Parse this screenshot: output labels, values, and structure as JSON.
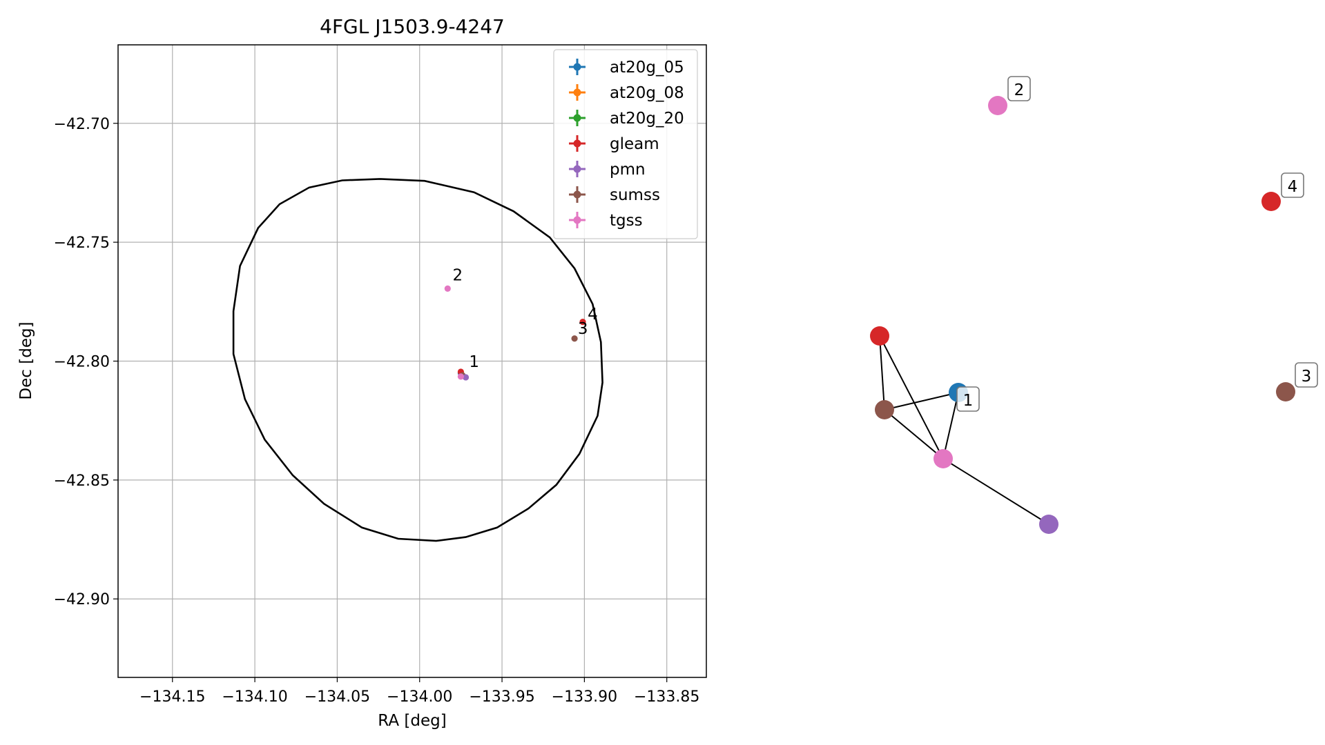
{
  "chart_data": [
    {
      "type": "scatter",
      "title": "4FGL J1503.9-4247",
      "xlabel": "RA [deg]",
      "ylabel": "Dec [deg]",
      "xlim": [
        -134.183,
        -133.826
      ],
      "ylim": [
        -42.933,
        -42.667
      ],
      "xticks": [
        -134.15,
        -134.1,
        -134.05,
        -134.0,
        -133.95,
        -133.9,
        -133.85
      ],
      "xtick_labels": [
        "−134.15",
        "−134.10",
        "−134.05",
        "−134.00",
        "−133.95",
        "−133.90",
        "−133.85"
      ],
      "yticks": [
        -42.7,
        -42.75,
        -42.8,
        -42.85,
        -42.9
      ],
      "ytick_labels": [
        "−42.70",
        "−42.75",
        "−42.80",
        "−42.85",
        "−42.90"
      ],
      "grid": true,
      "legend_position": "top-right",
      "legend": [
        {
          "name": "at20g_05",
          "color": "#1f77b4"
        },
        {
          "name": "at20g_08",
          "color": "#ff7f0e"
        },
        {
          "name": "at20g_20",
          "color": "#2ca02c"
        },
        {
          "name": "gleam",
          "color": "#d62728"
        },
        {
          "name": "pmn",
          "color": "#9467bd"
        },
        {
          "name": "sumss",
          "color": "#8c564b"
        },
        {
          "name": "tgss",
          "color": "#e377c2"
        }
      ],
      "ellipse": {
        "color": "#000000",
        "points": [
          [
            -134.024,
            -42.7234
          ],
          [
            -133.997,
            -42.7242
          ],
          [
            -133.967,
            -42.729
          ],
          [
            -133.943,
            -42.737
          ],
          [
            -133.921,
            -42.748
          ],
          [
            -133.906,
            -42.761
          ],
          [
            -133.895,
            -42.776
          ],
          [
            -133.89,
            -42.792
          ],
          [
            -133.889,
            -42.809
          ],
          [
            -133.892,
            -42.823
          ],
          [
            -133.903,
            -42.839
          ],
          [
            -133.917,
            -42.852
          ],
          [
            -133.934,
            -42.862
          ],
          [
            -133.953,
            -42.87
          ],
          [
            -133.972,
            -42.874
          ],
          [
            -133.99,
            -42.8756
          ],
          [
            -134.013,
            -42.8747
          ],
          [
            -134.035,
            -42.87
          ],
          [
            -134.058,
            -42.86
          ],
          [
            -134.077,
            -42.848
          ],
          [
            -134.094,
            -42.833
          ],
          [
            -134.106,
            -42.816
          ],
          [
            -134.113,
            -42.797
          ],
          [
            -134.113,
            -42.779
          ],
          [
            -134.109,
            -42.76
          ],
          [
            -134.098,
            -42.744
          ],
          [
            -134.085,
            -42.734
          ],
          [
            -134.067,
            -42.727
          ],
          [
            -134.047,
            -42.724
          ],
          [
            -134.024,
            -42.7234
          ]
        ]
      },
      "points": [
        {
          "catalog": "at20g_05",
          "ra": -133.975,
          "dec": -42.805,
          "color": "#1f77b4"
        },
        {
          "catalog": "gleam",
          "ra": -133.975,
          "dec": -42.8045,
          "color": "#d62728"
        },
        {
          "catalog": "sumss",
          "ra": -133.974,
          "dec": -42.806,
          "color": "#8c564b"
        },
        {
          "catalog": "pmn",
          "ra": -133.972,
          "dec": -42.8068,
          "color": "#9467bd"
        },
        {
          "catalog": "tgss",
          "ra": -133.975,
          "dec": -42.8065,
          "color": "#e377c2"
        },
        {
          "catalog": "tgss",
          "ra": -133.983,
          "dec": -42.7695,
          "color": "#e377c2"
        },
        {
          "catalog": "sumss",
          "ra": -133.906,
          "dec": -42.7905,
          "color": "#8c564b"
        },
        {
          "catalog": "gleam",
          "ra": -133.901,
          "dec": -42.7835,
          "color": "#d62728"
        }
      ],
      "point_labels": [
        {
          "text": "1",
          "ra": -133.97,
          "dec": -42.8025
        },
        {
          "text": "2",
          "ra": -133.98,
          "dec": -42.766
        },
        {
          "text": "3",
          "ra": -133.904,
          "dec": -42.7885
        },
        {
          "text": "4",
          "ra": -133.898,
          "dec": -42.7825
        }
      ]
    },
    {
      "type": "network",
      "nodes": [
        {
          "id": "gleam",
          "color": "#d62728"
        },
        {
          "id": "at20g_05",
          "color": "#1f77b4"
        },
        {
          "id": "sumss",
          "color": "#8c564b"
        },
        {
          "id": "tgss",
          "color": "#e377c2"
        },
        {
          "id": "pmn",
          "color": "#9467bd"
        },
        {
          "id": "tgss_2",
          "color": "#e377c2"
        },
        {
          "id": "gleam_4",
          "color": "#d62728"
        },
        {
          "id": "sumss_3",
          "color": "#8c564b"
        }
      ],
      "edges": [
        [
          "gleam",
          "sumss"
        ],
        [
          "gleam",
          "tgss"
        ],
        [
          "sumss",
          "at20g_05"
        ],
        [
          "sumss",
          "tgss"
        ],
        [
          "at20g_05",
          "tgss"
        ],
        [
          "tgss",
          "pmn"
        ]
      ],
      "labels": [
        "1",
        "2",
        "3",
        "4"
      ]
    }
  ]
}
